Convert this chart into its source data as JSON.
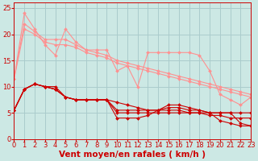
{
  "background_color": "#cce8e4",
  "grid_color": "#aacccc",
  "xlabel": "Vent moyen/en rafales ( km/h )",
  "xlim": [
    0,
    23
  ],
  "ylim": [
    0,
    26
  ],
  "xticks": [
    0,
    1,
    2,
    3,
    4,
    5,
    6,
    7,
    8,
    9,
    10,
    11,
    12,
    13,
    14,
    15,
    16,
    17,
    18,
    19,
    20,
    21,
    22,
    23
  ],
  "yticks": [
    0,
    5,
    10,
    15,
    20,
    25
  ],
  "series_light": [
    {
      "x": [
        0,
        1,
        2,
        3,
        4,
        5,
        6,
        7,
        8,
        9,
        10,
        11,
        12,
        13,
        14,
        15,
        16,
        17,
        18,
        19,
        20,
        21,
        22,
        23
      ],
      "y": [
        11.5,
        24,
        21,
        18,
        16,
        21,
        18.5,
        17,
        17,
        17,
        13,
        14,
        10,
        16.5,
        16.5,
        16.5,
        16.5,
        16.5,
        16,
        13,
        8.5,
        7.5,
        6.5,
        8
      ],
      "color": "#ff9090"
    },
    {
      "x": [
        0,
        1,
        2,
        3,
        4,
        5,
        6,
        7,
        8,
        9,
        10,
        11,
        12,
        13,
        14,
        15,
        16,
        17,
        18,
        19,
        20,
        21,
        22,
        23
      ],
      "y": [
        11.5,
        22,
        20.5,
        19,
        19,
        19,
        18,
        17,
        16.5,
        16,
        15,
        14.5,
        14,
        13.5,
        13,
        12.5,
        12,
        11.5,
        11,
        10.5,
        10,
        9.5,
        9,
        8.5
      ],
      "color": "#ff9090"
    },
    {
      "x": [
        0,
        1,
        2,
        3,
        4,
        5,
        6,
        7,
        8,
        9,
        10,
        11,
        12,
        13,
        14,
        15,
        16,
        17,
        18,
        19,
        20,
        21,
        22,
        23
      ],
      "y": [
        11.5,
        21,
        20,
        18.5,
        18,
        18,
        17.5,
        16.5,
        16,
        15.5,
        14.5,
        14,
        13.5,
        13,
        12.5,
        12,
        11.5,
        11,
        10.5,
        10,
        9.5,
        9,
        8.5,
        8
      ],
      "color": "#ff9090"
    }
  ],
  "series_dark": [
    {
      "x": [
        0,
        1,
        2,
        3,
        4,
        5,
        6,
        7,
        8,
        9,
        10,
        11,
        12,
        13,
        14,
        15,
        16,
        17,
        18,
        19,
        20,
        21,
        22,
        23
      ],
      "y": [
        5.5,
        9.5,
        10.5,
        10,
        9.5,
        8,
        7.5,
        7.5,
        7.5,
        7.5,
        4,
        4,
        4,
        4.5,
        5.5,
        6,
        6,
        5.5,
        5.5,
        5,
        3.5,
        3,
        2.5,
        2.5
      ],
      "color": "#cc0000"
    },
    {
      "x": [
        0,
        1,
        2,
        3,
        4,
        5,
        6,
        7,
        8,
        9,
        10,
        11,
        12,
        13,
        14,
        15,
        16,
        17,
        18,
        19,
        20,
        21,
        22,
        23
      ],
      "y": [
        5.5,
        9.5,
        10.5,
        10,
        9.5,
        8,
        7.5,
        7.5,
        7.5,
        7.5,
        5.5,
        5.5,
        5.5,
        5.5,
        5.5,
        5.5,
        5.5,
        5,
        5,
        4.5,
        4.5,
        4,
        4,
        4
      ],
      "color": "#cc0000"
    },
    {
      "x": [
        0,
        1,
        2,
        3,
        4,
        5,
        6,
        7,
        8,
        9,
        10,
        11,
        12,
        13,
        14,
        15,
        16,
        17,
        18,
        19,
        20,
        21,
        22,
        23
      ],
      "y": [
        5.5,
        9.5,
        10.5,
        10,
        9.5,
        8,
        7.5,
        7.5,
        7.5,
        7.5,
        5,
        5,
        5,
        5,
        5,
        5,
        5,
        5,
        5,
        5,
        5,
        5,
        3,
        2.5
      ],
      "color": "#cc0000"
    },
    {
      "x": [
        0,
        1,
        2,
        3,
        4,
        5,
        6,
        7,
        8,
        9,
        10,
        11,
        12,
        13,
        14,
        15,
        16,
        17,
        18,
        19,
        20,
        21,
        22,
        23
      ],
      "y": [
        5.5,
        9.5,
        10.5,
        10,
        10,
        8,
        7.5,
        7.5,
        7.5,
        7.5,
        7,
        6.5,
        6,
        5.5,
        5.5,
        6.5,
        6.5,
        6,
        5.5,
        5,
        5,
        5,
        5,
        5
      ],
      "color": "#cc0000"
    }
  ],
  "xlabel_color": "#cc0000",
  "tick_color": "#cc0000",
  "xlabel_fontsize": 7.5,
  "tick_fontsize": 6,
  "marker_size": 2.0,
  "lw": 0.8
}
